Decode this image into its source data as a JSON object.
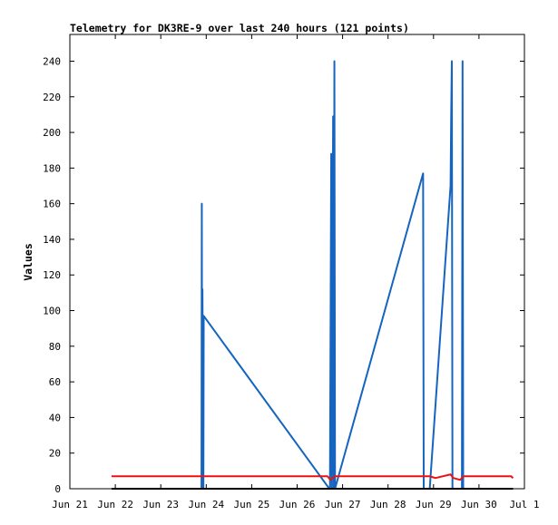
{
  "chart_data": {
    "type": "line",
    "title": "Telemetry for DK3RE-9 over last 240 hours (121 points)",
    "xlabel": "",
    "ylabel": "Values",
    "xlim": [
      "2021-06-21T00:00",
      "2021-07-01T00:00"
    ],
    "ylim": [
      0,
      255
    ],
    "x_ticks": [
      "Jun 21",
      "Jun 22",
      "Jun 23",
      "Jun 24",
      "Jun 25",
      "Jun 26",
      "Jun 27",
      "Jun 28",
      "Jun 29",
      "Jun 30",
      "Jul 1"
    ],
    "y_ticks": [
      0,
      20,
      40,
      60,
      80,
      100,
      120,
      140,
      160,
      180,
      200,
      220,
      240
    ],
    "grid": false,
    "legend": "none",
    "series": [
      {
        "color": "#1565c0",
        "points": [
          [
            "2021-06-23T21:30",
            0
          ],
          [
            "2021-06-23T21:40",
            160
          ],
          [
            "2021-06-23T21:50",
            0
          ],
          [
            "2021-06-23T22:00",
            112
          ],
          [
            "2021-06-23T22:30",
            0
          ],
          [
            "2021-06-23T22:40",
            97
          ],
          [
            "2021-06-26T17:00",
            0
          ],
          [
            "2021-06-26T17:20",
            0
          ],
          [
            "2021-06-26T18:00",
            188
          ],
          [
            "2021-06-26T18:20",
            0
          ],
          [
            "2021-06-26T19:00",
            209
          ],
          [
            "2021-06-26T19:20",
            0
          ],
          [
            "2021-06-26T19:40",
            240
          ],
          [
            "2021-06-26T20:00",
            0
          ],
          [
            "2021-06-28T18:30",
            177
          ],
          [
            "2021-06-28T18:50",
            0
          ],
          [
            "2021-06-28T22:00",
            0
          ],
          [
            "2021-06-29T09:00",
            170
          ],
          [
            "2021-06-29T09:20",
            209
          ],
          [
            "2021-06-29T09:40",
            240
          ],
          [
            "2021-06-29T10:00",
            0
          ],
          [
            "2021-06-29T15:00",
            0
          ],
          [
            "2021-06-29T15:20",
            240
          ],
          [
            "2021-06-29T15:40",
            0
          ]
        ]
      },
      {
        "color": "#ee1111",
        "points": [
          [
            "2021-06-21T22:00",
            7
          ],
          [
            "2021-06-21T23:00",
            7
          ],
          [
            "2021-06-26T16:00",
            7
          ],
          [
            "2021-06-26T17:30",
            5
          ],
          [
            "2021-06-26T20:00",
            7
          ],
          [
            "2021-06-28T22:00",
            7
          ],
          [
            "2021-06-29T01:00",
            6
          ],
          [
            "2021-06-29T09:00",
            8
          ],
          [
            "2021-06-29T10:30",
            6
          ],
          [
            "2021-06-29T14:00",
            5
          ],
          [
            "2021-06-29T16:00",
            7
          ],
          [
            "2021-06-30T17:00",
            7
          ],
          [
            "2021-06-30T18:00",
            6
          ]
        ]
      },
      {
        "color": "#000000",
        "points": [
          [
            "2021-06-21T22:00",
            0
          ],
          [
            "2021-06-30T18:00",
            0
          ]
        ]
      }
    ]
  }
}
